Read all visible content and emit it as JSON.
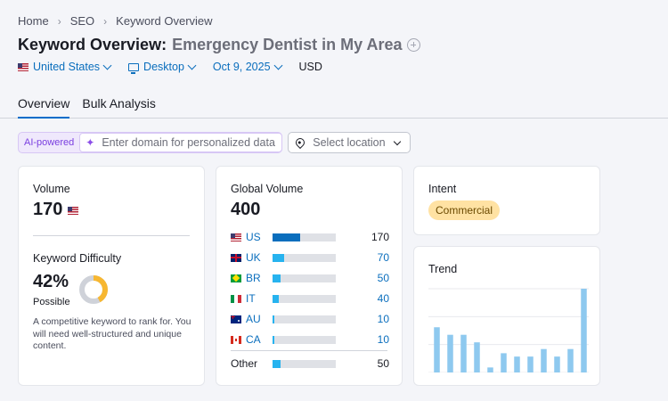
{
  "breadcrumb": [
    "Home",
    "SEO",
    "Keyword Overview"
  ],
  "title": {
    "prefix": "Keyword Overview:",
    "keyword": "Emergency Dentist in My Area"
  },
  "filters": {
    "country": "United States",
    "device": "Desktop",
    "date": "Oct 9, 2025",
    "currency": "USD"
  },
  "tabs": [
    "Overview",
    "Bulk Analysis"
  ],
  "ai": {
    "tag": "AI-powered",
    "placeholder": "Enter domain for personalized data",
    "location_placeholder": "Select location"
  },
  "volume": {
    "label": "Volume",
    "value": "170"
  },
  "keyword_difficulty": {
    "label": "Keyword Difficulty",
    "value": "42%",
    "percent": 42,
    "level": "Possible",
    "description": "A competitive keyword to rank for. You will need well-structured and unique content."
  },
  "global_volume": {
    "label": "Global Volume",
    "value": "400",
    "countries": [
      {
        "code": "US",
        "value": "170",
        "fill": 0.43,
        "color": "#0a6ebd"
      },
      {
        "code": "UK",
        "value": "70",
        "fill": 0.18,
        "color": "#27b3ef"
      },
      {
        "code": "BR",
        "value": "50",
        "fill": 0.13,
        "color": "#27b3ef"
      },
      {
        "code": "IT",
        "value": "40",
        "fill": 0.1,
        "color": "#27b3ef"
      },
      {
        "code": "AU",
        "value": "10",
        "fill": 0.03,
        "color": "#27b3ef"
      },
      {
        "code": "CA",
        "value": "10",
        "fill": 0.03,
        "color": "#27b3ef"
      }
    ],
    "other": {
      "label": "Other",
      "value": "50",
      "fill": 0.13
    }
  },
  "intent": {
    "label": "Intent",
    "badge": "Commercial"
  },
  "trend": {
    "label": "Trend",
    "chart_data": {
      "type": "bar",
      "values": [
        0.54,
        0.45,
        0.45,
        0.36,
        0.06,
        0.23,
        0.19,
        0.19,
        0.28,
        0.19,
        0.28,
        1.0
      ],
      "color": "#8ec9ef"
    }
  }
}
